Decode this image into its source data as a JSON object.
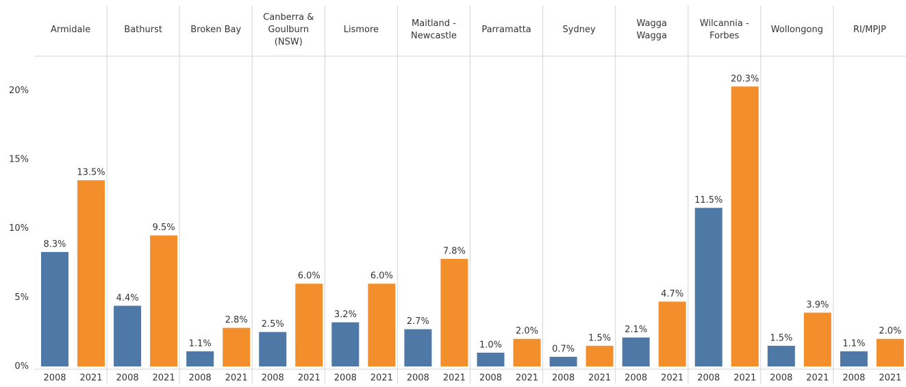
{
  "chart_data": {
    "type": "bar",
    "categories": [
      "Armidale",
      "Bathurst",
      "Broken Bay",
      "Canberra & Goulburn (NSW)",
      "Lismore",
      "Maitland - Newcastle",
      "Parramatta",
      "Sydney",
      "Wagga Wagga",
      "Wilcannia - Forbes",
      "Wollongong",
      "RI/MPJP"
    ],
    "series": [
      {
        "name": "2008",
        "color": "#4e79a7",
        "values": [
          8.3,
          4.4,
          1.1,
          2.5,
          3.2,
          2.7,
          1.0,
          0.7,
          2.1,
          11.5,
          1.5,
          1.1
        ],
        "value_labels": [
          "8.3%",
          "4.4%",
          "1.1%",
          "2.5%",
          "3.2%",
          "2.7%",
          "1.0%",
          "0.7%",
          "2.1%",
          "11.5%",
          "1.5%",
          "1.1%"
        ]
      },
      {
        "name": "2021",
        "color": "#f28e2b",
        "values": [
          13.5,
          9.5,
          2.8,
          6.0,
          6.0,
          7.8,
          2.0,
          1.5,
          4.7,
          20.3,
          3.9,
          2.0
        ],
        "value_labels": [
          "13.5%",
          "9.5%",
          "2.8%",
          "6.0%",
          "6.0%",
          "7.8%",
          "2.0%",
          "1.5%",
          "4.7%",
          "20.3%",
          "3.9%",
          "2.0%"
        ]
      }
    ],
    "ylim": [
      0,
      22.5
    ],
    "yticks": [
      {
        "value": 0,
        "label": "0%"
      },
      {
        "value": 5,
        "label": "5%"
      },
      {
        "value": 10,
        "label": "10%"
      },
      {
        "value": 15,
        "label": "15%"
      },
      {
        "value": 20,
        "label": "20%"
      }
    ],
    "grid": false
  }
}
